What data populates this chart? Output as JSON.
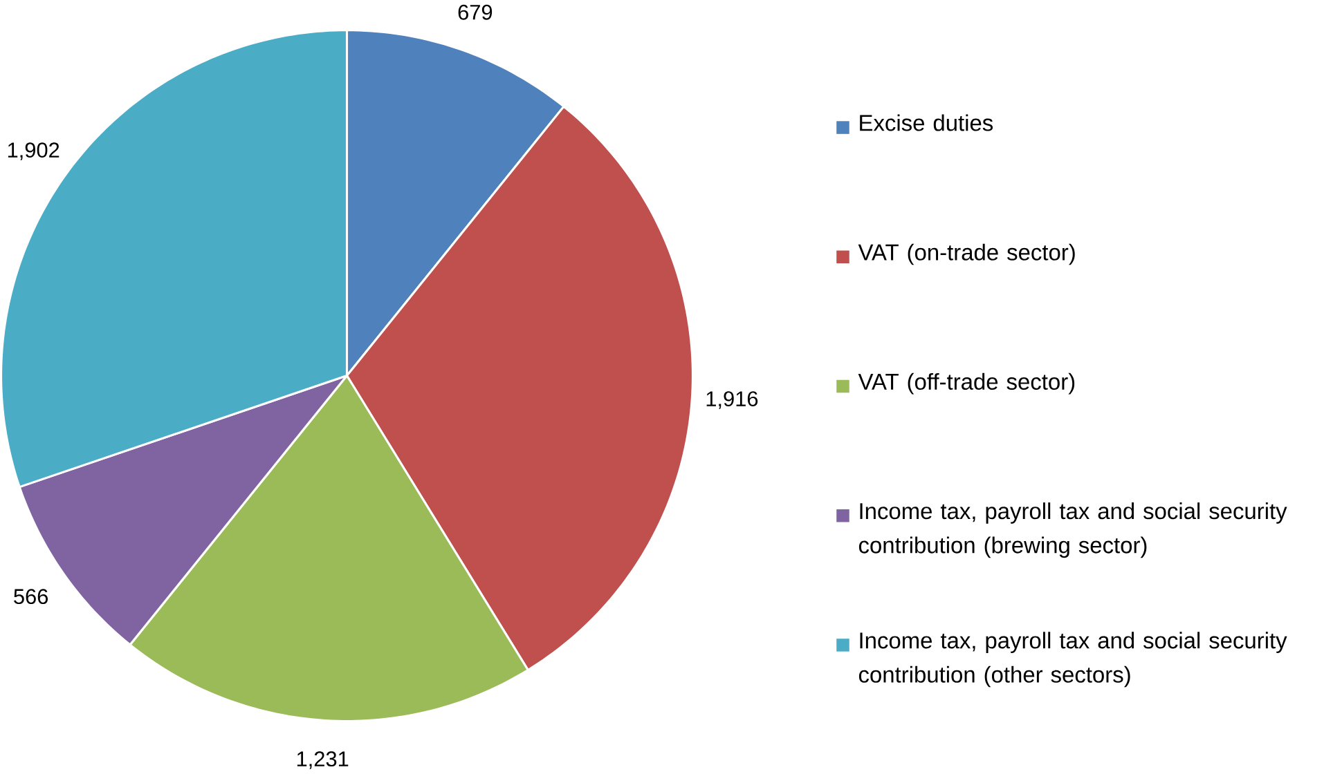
{
  "chart_data": {
    "type": "pie",
    "categories": [
      "Excise duties",
      "VAT (on-trade sector)",
      "VAT (off-trade sector)",
      "Income tax, payroll tax and social security contribution (brewing sector)",
      "Income tax, payroll tax and social security contribution (other sectors)"
    ],
    "values": [
      679,
      1916,
      1231,
      566,
      1902
    ],
    "colors": [
      "#4f81bd",
      "#c0504d",
      "#9bbb59",
      "#8064a2",
      "#4bacc6"
    ],
    "value_labels": [
      "679",
      "1,916",
      "1,231",
      "566",
      "1,902"
    ],
    "legend": "right"
  }
}
